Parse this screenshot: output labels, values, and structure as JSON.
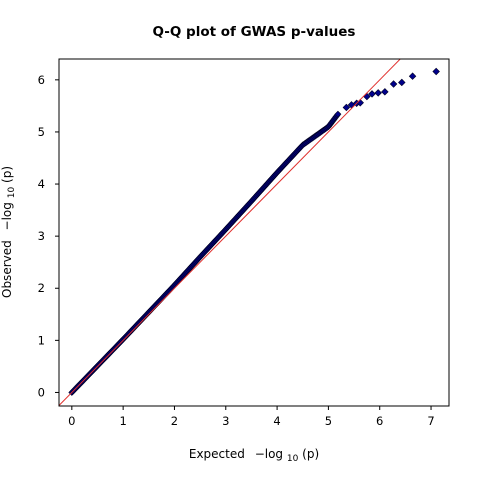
{
  "chart_data": {
    "type": "scatter",
    "title": "Q-Q plot of GWAS p-values",
    "xlabel": {
      "prefix": "Expected",
      "neg": "−log",
      "sub": "10",
      "arg": "(p)"
    },
    "ylabel": {
      "prefix": "Observed",
      "neg": "−log",
      "sub": "10",
      "arg": "(p)"
    },
    "xlim": [
      -0.25,
      7.35
    ],
    "ylim": [
      -0.26,
      6.4
    ],
    "xticks": [
      0,
      1,
      2,
      3,
      4,
      5,
      6,
      7
    ],
    "yticks": [
      0,
      1,
      2,
      3,
      4,
      5,
      6
    ],
    "grid": false,
    "reference_line": {
      "label": "y = x",
      "color": "#e0302d"
    },
    "point_color": "#00008b",
    "segment": {
      "description": "dense run of points that lie almost on the reference line",
      "x": [
        0,
        1,
        2,
        2.5,
        3,
        3.5,
        4,
        4.5,
        5,
        5.2
      ],
      "y": [
        0,
        1.02,
        2.06,
        2.6,
        3.13,
        3.67,
        4.22,
        4.75,
        5.1,
        5.36
      ]
    },
    "tail_points": [
      {
        "x": 5.35,
        "y": 5.47
      },
      {
        "x": 5.45,
        "y": 5.52
      },
      {
        "x": 5.55,
        "y": 5.55
      },
      {
        "x": 5.62,
        "y": 5.56
      },
      {
        "x": 5.75,
        "y": 5.68
      },
      {
        "x": 5.85,
        "y": 5.73
      },
      {
        "x": 5.97,
        "y": 5.75
      },
      {
        "x": 6.1,
        "y": 5.77
      },
      {
        "x": 6.27,
        "y": 5.92
      },
      {
        "x": 6.43,
        "y": 5.95
      },
      {
        "x": 6.64,
        "y": 6.07
      },
      {
        "x": 7.1,
        "y": 6.16
      }
    ]
  }
}
